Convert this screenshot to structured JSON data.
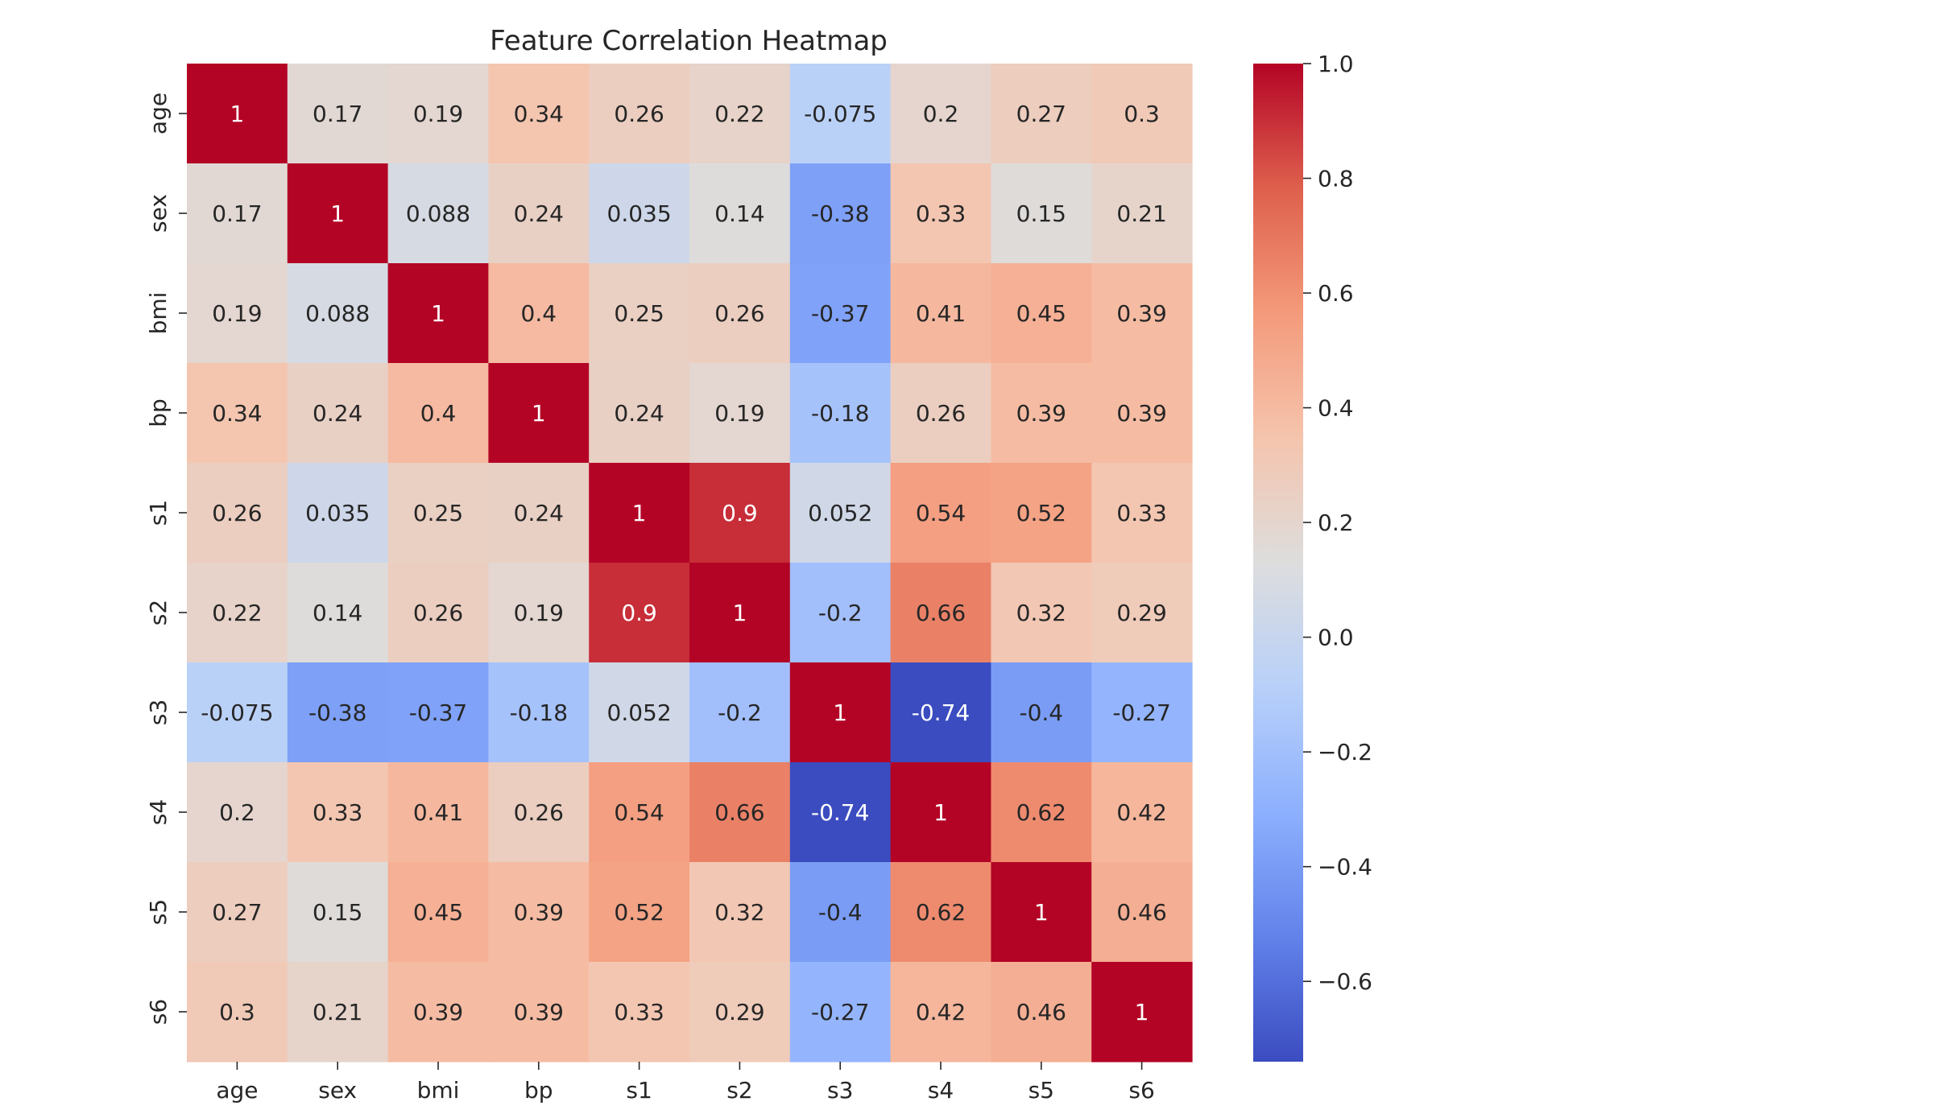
{
  "chart_data": {
    "type": "heatmap",
    "title": "Feature Correlation Heatmap",
    "xlabel": "",
    "ylabel": "",
    "x_categories": [
      "age",
      "sex",
      "bmi",
      "bp",
      "s1",
      "s2",
      "s3",
      "s4",
      "s5",
      "s6"
    ],
    "y_categories": [
      "age",
      "sex",
      "bmi",
      "bp",
      "s1",
      "s2",
      "s3",
      "s4",
      "s5",
      "s6"
    ],
    "values": [
      [
        1,
        0.17,
        0.19,
        0.34,
        0.26,
        0.22,
        -0.075,
        0.2,
        0.27,
        0.3
      ],
      [
        0.17,
        1,
        0.088,
        0.24,
        0.035,
        0.14,
        -0.38,
        0.33,
        0.15,
        0.21
      ],
      [
        0.19,
        0.088,
        1,
        0.4,
        0.25,
        0.26,
        -0.37,
        0.41,
        0.45,
        0.39
      ],
      [
        0.34,
        0.24,
        0.4,
        1,
        0.24,
        0.19,
        -0.18,
        0.26,
        0.39,
        0.39
      ],
      [
        0.26,
        0.035,
        0.25,
        0.24,
        1,
        0.9,
        0.052,
        0.54,
        0.52,
        0.33
      ],
      [
        0.22,
        0.14,
        0.26,
        0.19,
        0.9,
        1,
        -0.2,
        0.66,
        0.32,
        0.29
      ],
      [
        -0.075,
        -0.38,
        -0.37,
        -0.18,
        0.052,
        -0.2,
        1,
        -0.74,
        -0.4,
        -0.27
      ],
      [
        0.2,
        0.33,
        0.41,
        0.26,
        0.54,
        0.66,
        -0.74,
        1,
        0.62,
        0.42
      ],
      [
        0.27,
        0.15,
        0.45,
        0.39,
        0.52,
        0.32,
        -0.4,
        0.62,
        1,
        0.46
      ],
      [
        0.3,
        0.21,
        0.39,
        0.39,
        0.33,
        0.29,
        -0.27,
        0.42,
        0.46,
        1
      ]
    ],
    "colormap": "coolwarm",
    "colorbar": {
      "range": [
        -0.74,
        1.0
      ],
      "ticks": [
        1.0,
        0.8,
        0.6,
        0.4,
        0.2,
        0.0,
        -0.2,
        -0.4,
        -0.6
      ],
      "tick_labels": [
        "1.0",
        "0.8",
        "0.6",
        "0.4",
        "0.2",
        "0.0",
        "−0.2",
        "−0.4",
        "−0.6"
      ]
    },
    "annotations": true,
    "grid": false
  }
}
